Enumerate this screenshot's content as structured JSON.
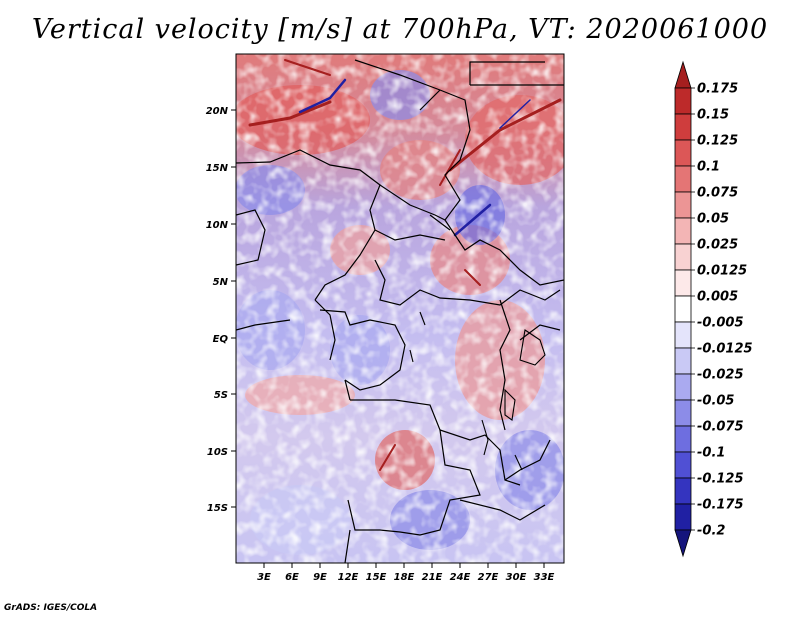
{
  "title": "Vertical velocity [m/s] at 700hPa, VT: 2020061000",
  "credit": "GrADS: IGES/COLA",
  "lat_labels": [
    "20N",
    "15N",
    "10N",
    "5N",
    "EQ",
    "5S",
    "10S",
    "15S"
  ],
  "lon_labels": [
    "3E",
    "6E",
    "9E",
    "12E",
    "15E",
    "18E",
    "21E",
    "24E",
    "27E",
    "30E",
    "33E"
  ],
  "colorbar": {
    "labels": [
      "0.175",
      "0.15",
      "0.125",
      "0.1",
      "0.075",
      "0.05",
      "0.025",
      "0.0125",
      "0.005",
      "-0.005",
      "-0.0125",
      "-0.025",
      "-0.05",
      "-0.075",
      "-0.1",
      "-0.125",
      "-0.175",
      "-0.2"
    ],
    "colors": [
      "#a51f1f",
      "#bd2a2a",
      "#cf3d3d",
      "#dc5757",
      "#e47575",
      "#ec9595",
      "#f3b5b5",
      "#f8d2d2",
      "#fde9e9",
      "#ffffff",
      "#e4e4fb",
      "#c9c9f5",
      "#aaaaf0",
      "#8c8ce8",
      "#6e6ee0",
      "#5050d4",
      "#3434bf",
      "#2020a3",
      "#15157c"
    ]
  }
}
